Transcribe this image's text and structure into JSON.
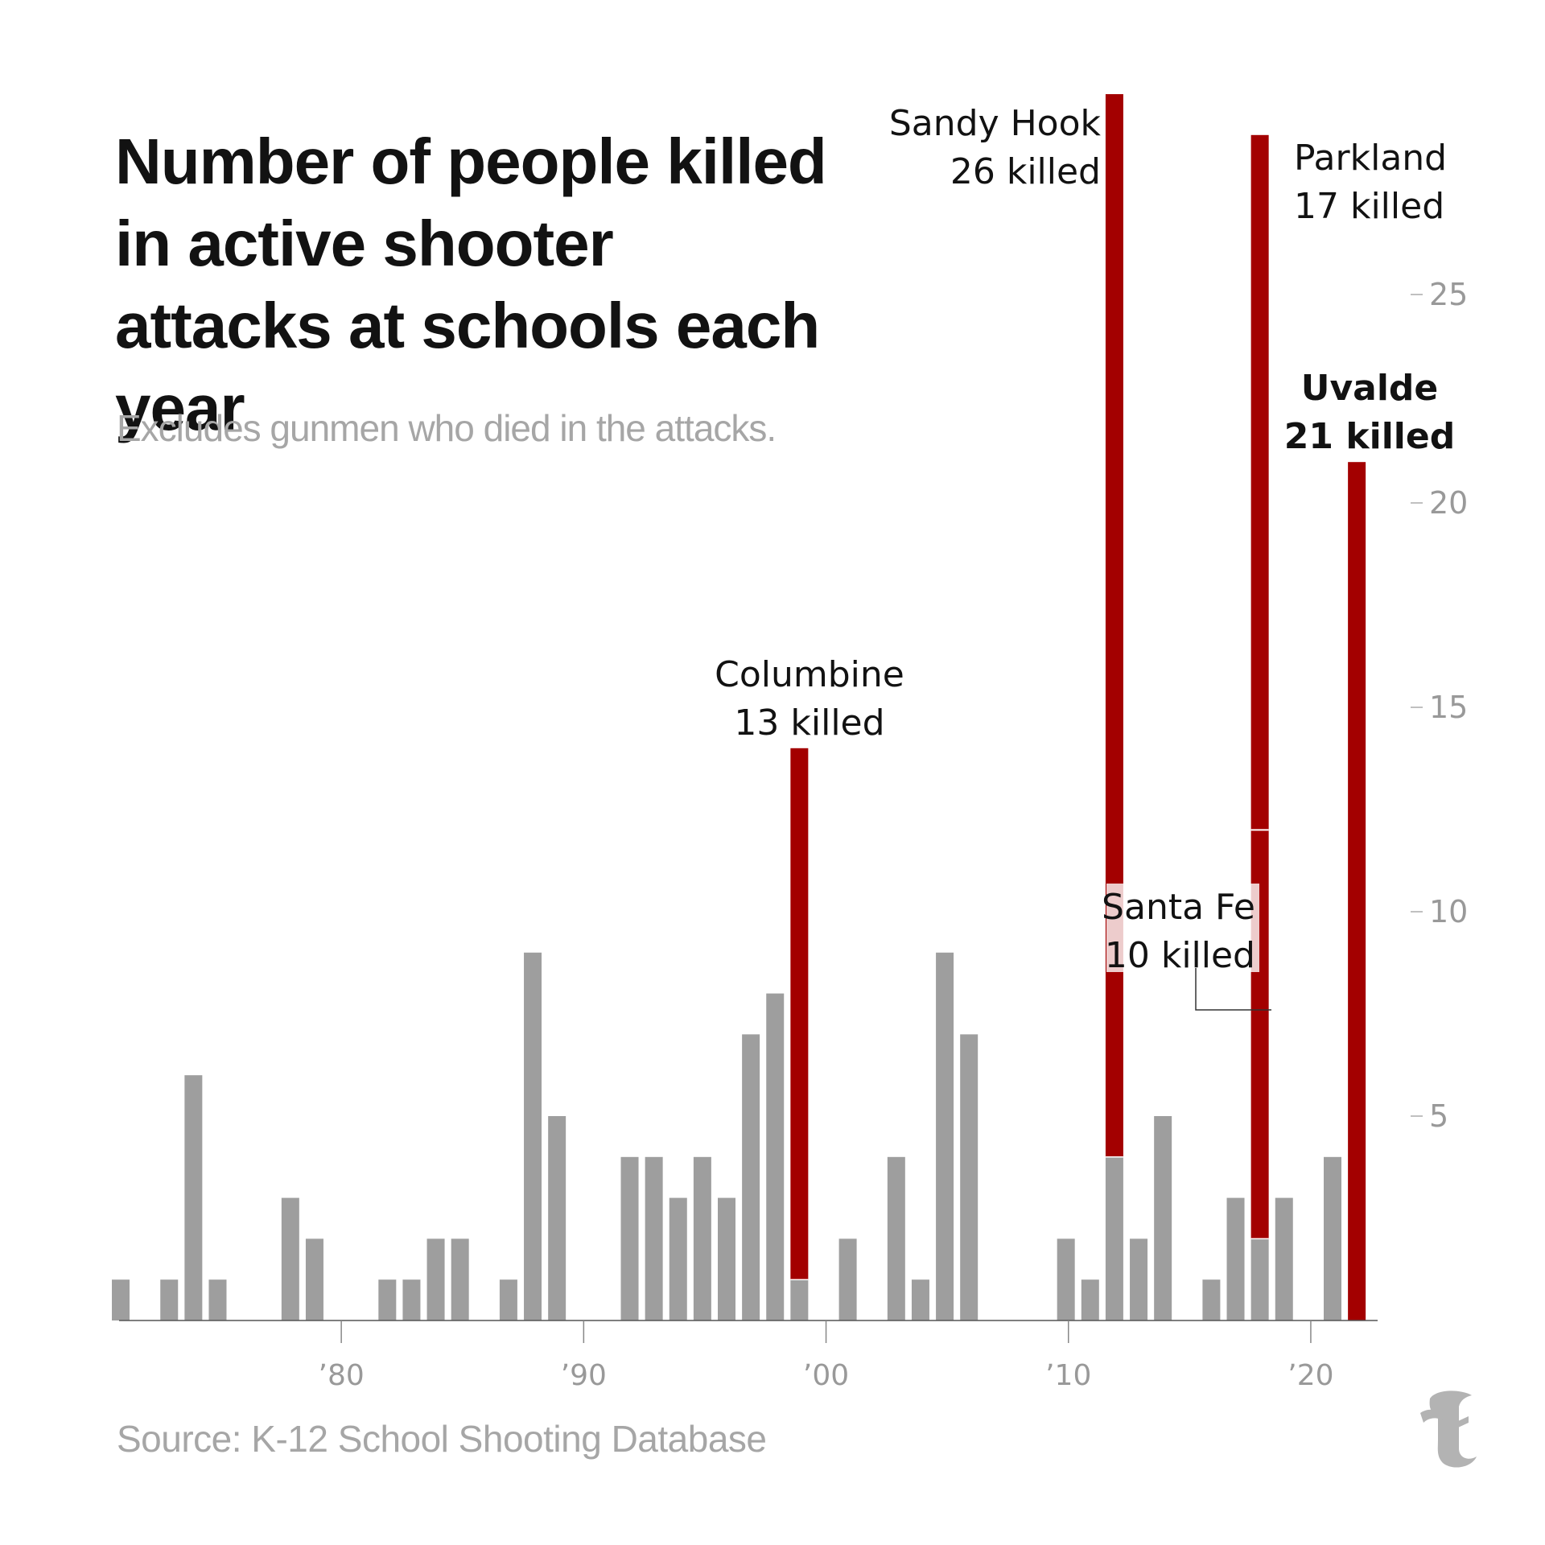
{
  "title": "Number of people killed in active shooter attacks at schools each year",
  "subtitle": "Excludes gunmen who died in the attacks.",
  "source": "Source: K-12 School Shooting Database",
  "logo": {
    "icon": "nyt-t-logo-icon",
    "glyph": "T"
  },
  "colors": {
    "other": "#9e9e9e",
    "highlight": "#a30000",
    "axis": "#888888",
    "tick_label": "#999999",
    "text": "#121212"
  },
  "chart_data": {
    "type": "bar",
    "stacked": true,
    "x": [
      1971,
      1972,
      1973,
      1974,
      1975,
      1976,
      1977,
      1978,
      1979,
      1980,
      1981,
      1982,
      1983,
      1984,
      1985,
      1986,
      1987,
      1988,
      1989,
      1990,
      1991,
      1992,
      1993,
      1994,
      1995,
      1996,
      1997,
      1998,
      1999,
      2000,
      2001,
      2002,
      2003,
      2004,
      2005,
      2006,
      2007,
      2008,
      2009,
      2010,
      2011,
      2012,
      2013,
      2014,
      2015,
      2016,
      2017,
      2018,
      2019,
      2020,
      2021,
      2022
    ],
    "series": [
      {
        "key": "other",
        "values": [
          1,
          0,
          1,
          6,
          1,
          0,
          0,
          3,
          2,
          0,
          0,
          1,
          1,
          2,
          2,
          0,
          1,
          9,
          5,
          0,
          0,
          4,
          4,
          3,
          4,
          3,
          7,
          8,
          1,
          0,
          2,
          0,
          4,
          1,
          9,
          7,
          0,
          0,
          0,
          2,
          1,
          4,
          2,
          5,
          0,
          1,
          3,
          2,
          3,
          0,
          4,
          0
        ]
      },
      {
        "key": "highlight",
        "values": [
          0,
          0,
          0,
          0,
          0,
          0,
          0,
          0,
          0,
          0,
          0,
          0,
          0,
          0,
          0,
          0,
          0,
          0,
          0,
          0,
          0,
          0,
          0,
          0,
          0,
          0,
          0,
          0,
          13,
          0,
          0,
          0,
          0,
          0,
          0,
          0,
          0,
          0,
          0,
          0,
          0,
          26,
          0,
          0,
          0,
          0,
          0,
          27,
          0,
          0,
          0,
          21
        ]
      }
    ],
    "xticks": [
      1980,
      1990,
      2000,
      2010,
      2020
    ],
    "xtick_labels": [
      "’80",
      "’90",
      "’00",
      "’10",
      "’20"
    ],
    "yticks": [
      5,
      10,
      15,
      20,
      25
    ],
    "ylim": [
      0,
      30
    ],
    "y_axis_side": "right",
    "grid": false,
    "legend": "none",
    "annotations": [
      {
        "year": 1999,
        "lines": [
          "Columbine",
          "13 killed"
        ],
        "bold": false
      },
      {
        "year": 2012,
        "lines": [
          "Sandy Hook",
          "26 killed"
        ],
        "bold": false
      },
      {
        "year": 2018,
        "lines": [
          "Parkland",
          "17 killed"
        ],
        "bold": false
      },
      {
        "year": 2018,
        "lines": [
          "Santa Fe",
          "10 killed"
        ],
        "bold": false,
        "leader": true
      },
      {
        "year": 2022,
        "lines": [
          "Uvalde",
          "21 killed"
        ],
        "bold": true
      }
    ]
  }
}
